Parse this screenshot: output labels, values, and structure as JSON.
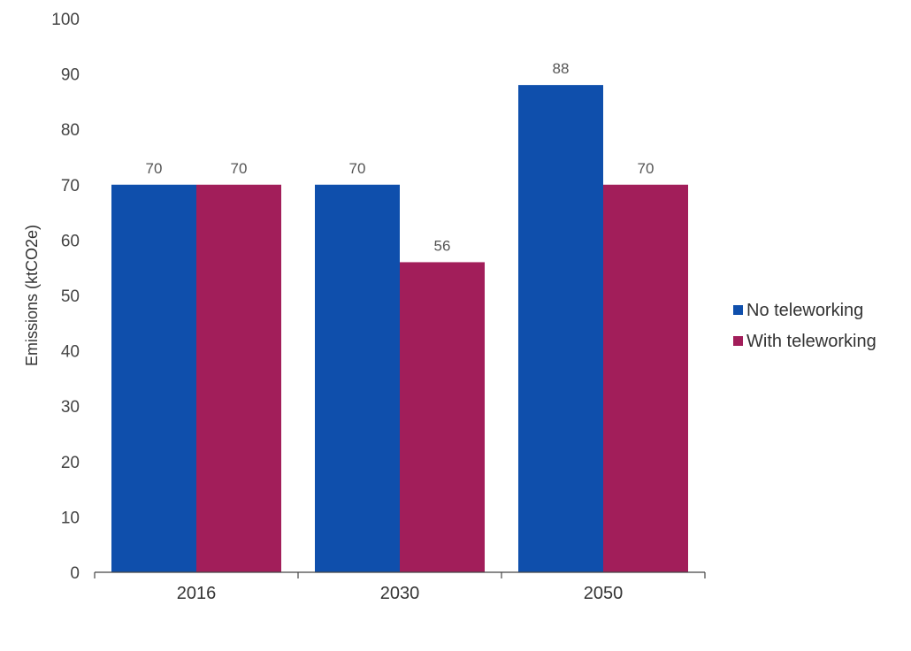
{
  "chart_data": {
    "type": "bar",
    "title": "",
    "xlabel": "",
    "ylabel": "Emissions (ktCO2e)",
    "categories": [
      "2016",
      "2030",
      "2050"
    ],
    "series": [
      {
        "name": "No teleworking",
        "values": [
          70,
          70,
          88
        ],
        "labels": [
          "70",
          "70",
          "88"
        ],
        "color": "#0f4fac"
      },
      {
        "name": "With teleworking",
        "values": [
          70,
          56,
          70
        ],
        "labels": [
          "70",
          "56",
          "70"
        ],
        "color": "#a21e5a"
      }
    ],
    "ylim": [
      0,
      100
    ],
    "yticks": [
      0,
      10,
      20,
      30,
      40,
      50,
      60,
      70,
      80,
      90,
      100
    ],
    "grid": false,
    "legend": "right"
  }
}
